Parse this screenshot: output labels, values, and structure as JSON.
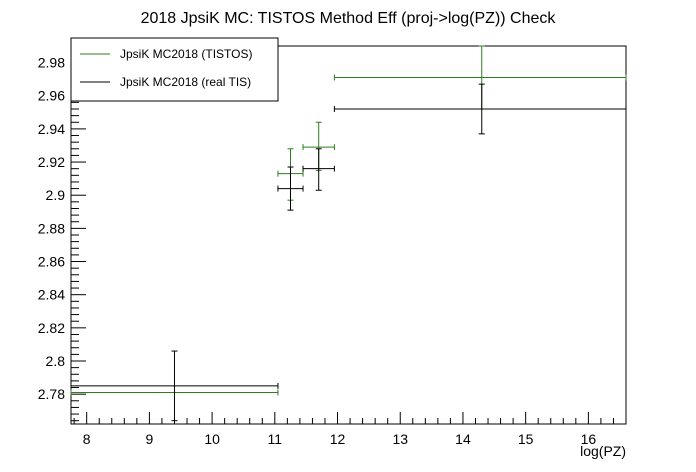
{
  "chart_data": {
    "type": "scatter",
    "title": "2018 JpsiK MC: TISTOS Method Eff (proj->log(PZ)) Check",
    "xlabel": "log(PZ)",
    "ylabel": "",
    "xlim": [
      7.75,
      16.6
    ],
    "ylim": [
      2.762,
      2.99
    ],
    "xticks": [
      "8",
      "9",
      "10",
      "11",
      "12",
      "13",
      "14",
      "15",
      "16"
    ],
    "yticks": [
      "2.78",
      "2.8",
      "2.82",
      "2.84",
      "2.86",
      "2.88",
      "2.9",
      "2.92",
      "2.94",
      "2.96",
      "2.98"
    ],
    "grid": false,
    "legend_position": "top-left",
    "series": [
      {
        "name": "JpsiK MC2018 (TISTOS)",
        "color": "#2e7d1e",
        "points": [
          {
            "x": 9.4,
            "xlo": 7.75,
            "xhi": 11.05,
            "y": 2.781,
            "ylo": 2.781,
            "yhi": 2.781
          },
          {
            "x": 11.25,
            "xlo": 11.05,
            "xhi": 11.45,
            "y": 2.913,
            "ylo": 2.897,
            "yhi": 2.928
          },
          {
            "x": 11.7,
            "xlo": 11.45,
            "xhi": 11.95,
            "y": 2.929,
            "ylo": 2.915,
            "yhi": 2.944
          },
          {
            "x": 14.3,
            "xlo": 11.95,
            "xhi": 16.6,
            "y": 2.971,
            "ylo": 2.952,
            "yhi": 2.99
          }
        ]
      },
      {
        "name": "JpsiK MC2018 (real TIS)",
        "color": "#000000",
        "points": [
          {
            "x": 9.4,
            "xlo": 7.75,
            "xhi": 11.05,
            "y": 2.785,
            "ylo": 2.764,
            "yhi": 2.806
          },
          {
            "x": 11.25,
            "xlo": 11.05,
            "xhi": 11.45,
            "y": 2.904,
            "ylo": 2.891,
            "yhi": 2.917
          },
          {
            "x": 11.7,
            "xlo": 11.45,
            "xhi": 11.95,
            "y": 2.916,
            "ylo": 2.903,
            "yhi": 2.928
          },
          {
            "x": 14.3,
            "xlo": 11.95,
            "xhi": 16.6,
            "y": 2.952,
            "ylo": 2.937,
            "yhi": 2.967
          }
        ]
      }
    ]
  }
}
